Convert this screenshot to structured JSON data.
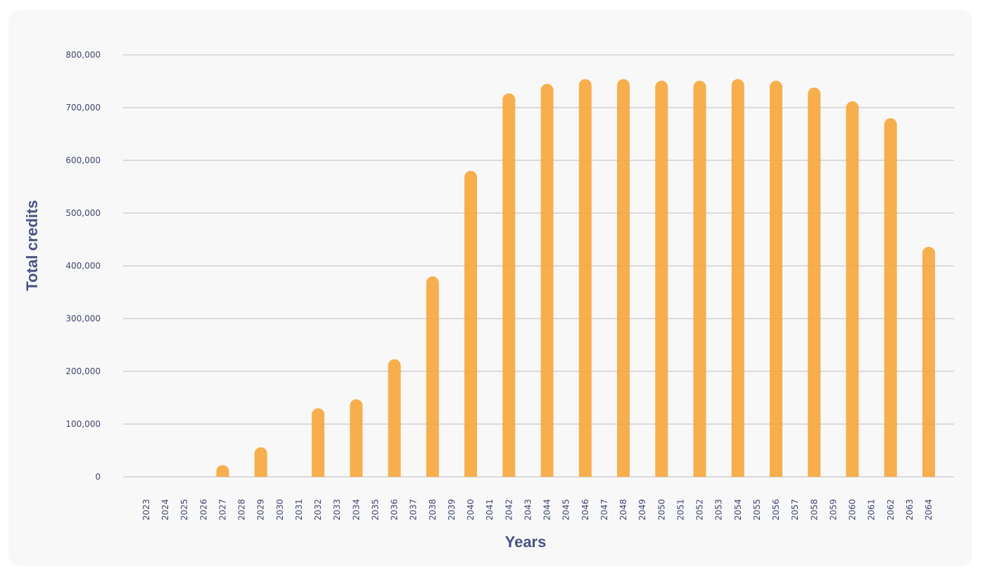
{
  "chart_data": {
    "type": "bar",
    "title": "",
    "xlabel": "Years",
    "ylabel": "Total credits",
    "ylim": [
      0,
      800000
    ],
    "yticks": [
      "0",
      "100,000",
      "200,000",
      "300,000",
      "400,000",
      "500,000",
      "600,000",
      "700,000",
      "800,000"
    ],
    "grid": true,
    "bar_color": "#f5a83d",
    "categories": [
      "2023",
      "2024",
      "2025",
      "2026",
      "2027",
      "2028",
      "2029",
      "2030",
      "2031",
      "2032",
      "2033",
      "2034",
      "2035",
      "2036",
      "2037",
      "2038",
      "2039",
      "2040",
      "2041",
      "2042",
      "2043",
      "2044",
      "2045",
      "2046",
      "2047",
      "2048",
      "2049",
      "2050",
      "2051",
      "2052",
      "2053",
      "2054",
      "2055",
      "2056",
      "2057",
      "2058",
      "2059",
      "2060",
      "2061",
      "2062",
      "2063",
      "2064"
    ],
    "values": [
      0,
      0,
      0,
      0,
      22000,
      0,
      56000,
      0,
      0,
      130000,
      0,
      147000,
      0,
      223000,
      0,
      380000,
      0,
      580000,
      0,
      727000,
      0,
      745000,
      0,
      754000,
      0,
      754000,
      0,
      751000,
      0,
      751000,
      0,
      754000,
      0,
      751000,
      0,
      738000,
      0,
      712000,
      0,
      680000,
      0,
      436000
    ]
  }
}
